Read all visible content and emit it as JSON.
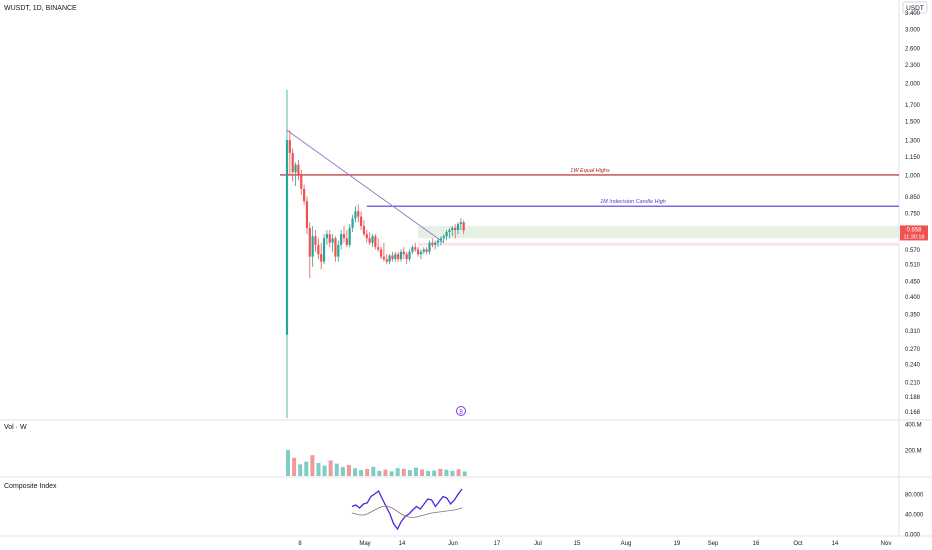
{
  "header": {
    "symbol_line": "WUSDT, 1D, BINANCE",
    "currency_button": "USDT"
  },
  "price_axis": {
    "ticks": [
      "3.400",
      "3.000",
      "2.600",
      "2.300",
      "2.000",
      "1.700",
      "1.500",
      "1.300",
      "1.150",
      "1.000",
      "0.850",
      "0.750",
      "0.570",
      "0.510",
      "0.450",
      "0.400",
      "0.350",
      "0.310",
      "0.270",
      "0.240",
      "0.210",
      "0.188",
      "0.168"
    ],
    "last_price_label": "0.658",
    "countdown_label": "11:30:18",
    "scale": "log"
  },
  "time_axis": {
    "ticks": [
      "8",
      "May",
      "14",
      "Jun",
      "17",
      "Jul",
      "15",
      "Aug",
      "19",
      "Sep",
      "16",
      "Oct",
      "14",
      "Nov"
    ]
  },
  "drawings": {
    "equal_highs_label": "1W Equal Highs",
    "indecision_label": "1M Indecision Candle High",
    "line_color": "#b71c1c",
    "indecision_color": "#4a3fd6"
  },
  "volume_pane": {
    "label": "Vol · W",
    "ticks": [
      "400.M",
      "200.M"
    ]
  },
  "indicator_pane": {
    "label": "Composite Index",
    "ticks": [
      "80.000",
      "40.000",
      "0.000"
    ],
    "line_color": "#4b28d6"
  },
  "colors": {
    "up": "#26a69a",
    "down": "#ef5350",
    "last_price_bg": "#ef5350"
  },
  "chart_data": {
    "type": "candlestick",
    "x": [
      "Apr 3",
      "Apr 4",
      "Apr 5",
      "Apr 6",
      "Apr 7",
      "Apr 8",
      "Apr 9",
      "Apr 10",
      "Apr 11",
      "Apr 12",
      "Apr 13",
      "Apr 14",
      "Apr 15",
      "Apr 16",
      "Apr 17",
      "Apr 18",
      "Apr 19",
      "Apr 20",
      "Apr 21",
      "Apr 22",
      "Apr 23",
      "Apr 24",
      "Apr 25",
      "Apr 26",
      "Apr 27",
      "Apr 28",
      "Apr 29",
      "Apr 30",
      "May 1",
      "May 2",
      "May 3",
      "May 4",
      "May 5",
      "May 6",
      "May 7",
      "May 8",
      "May 9",
      "May 10",
      "May 11",
      "May 12",
      "May 13",
      "May 14",
      "May 15",
      "May 16",
      "May 17",
      "May 18",
      "May 19",
      "May 20",
      "May 21",
      "May 22",
      "May 23",
      "May 24",
      "May 25",
      "May 26",
      "May 27",
      "May 28",
      "May 29",
      "May 30",
      "May 31",
      "Jun 1",
      "Jun 2",
      "Jun 3",
      "Jun 4"
    ],
    "ohlc": [
      [
        0.3,
        1.9,
        0.16,
        1.3
      ],
      [
        1.3,
        1.4,
        1.0,
        1.18
      ],
      [
        1.18,
        1.22,
        0.95,
        1.02
      ],
      [
        1.02,
        1.1,
        0.92,
        1.08
      ],
      [
        1.08,
        1.12,
        0.96,
        1.0
      ],
      [
        1.0,
        1.04,
        0.86,
        0.9
      ],
      [
        0.9,
        0.93,
        0.8,
        0.82
      ],
      [
        0.82,
        0.85,
        0.64,
        0.67
      ],
      [
        0.67,
        0.7,
        0.46,
        0.54
      ],
      [
        0.54,
        0.68,
        0.5,
        0.63
      ],
      [
        0.63,
        0.66,
        0.56,
        0.59
      ],
      [
        0.59,
        0.62,
        0.53,
        0.55
      ],
      [
        0.55,
        0.6,
        0.49,
        0.52
      ],
      [
        0.52,
        0.64,
        0.51,
        0.62
      ],
      [
        0.62,
        0.66,
        0.59,
        0.64
      ],
      [
        0.64,
        0.66,
        0.58,
        0.6
      ],
      [
        0.6,
        0.64,
        0.56,
        0.62
      ],
      [
        0.62,
        0.63,
        0.52,
        0.54
      ],
      [
        0.54,
        0.61,
        0.52,
        0.59
      ],
      [
        0.59,
        0.66,
        0.57,
        0.64
      ],
      [
        0.64,
        0.68,
        0.6,
        0.62
      ],
      [
        0.62,
        0.66,
        0.58,
        0.59
      ],
      [
        0.59,
        0.69,
        0.58,
        0.67
      ],
      [
        0.67,
        0.74,
        0.65,
        0.72
      ],
      [
        0.72,
        0.79,
        0.7,
        0.76
      ],
      [
        0.76,
        0.8,
        0.7,
        0.73
      ],
      [
        0.73,
        0.76,
        0.66,
        0.68
      ],
      [
        0.68,
        0.71,
        0.63,
        0.64
      ],
      [
        0.64,
        0.66,
        0.6,
        0.62
      ],
      [
        0.62,
        0.65,
        0.59,
        0.6
      ],
      [
        0.6,
        0.64,
        0.58,
        0.63
      ],
      [
        0.63,
        0.64,
        0.57,
        0.58
      ],
      [
        0.58,
        0.62,
        0.56,
        0.57
      ],
      [
        0.57,
        0.58,
        0.53,
        0.54
      ],
      [
        0.54,
        0.6,
        0.52,
        0.53
      ],
      [
        0.53,
        0.55,
        0.51,
        0.52
      ],
      [
        0.52,
        0.55,
        0.51,
        0.545
      ],
      [
        0.545,
        0.56,
        0.52,
        0.53
      ],
      [
        0.53,
        0.56,
        0.52,
        0.55
      ],
      [
        0.55,
        0.56,
        0.52,
        0.53
      ],
      [
        0.53,
        0.57,
        0.52,
        0.56
      ],
      [
        0.56,
        0.58,
        0.53,
        0.55
      ],
      [
        0.55,
        0.56,
        0.51,
        0.53
      ],
      [
        0.53,
        0.57,
        0.52,
        0.56
      ],
      [
        0.56,
        0.59,
        0.55,
        0.58
      ],
      [
        0.58,
        0.6,
        0.56,
        0.57
      ],
      [
        0.57,
        0.58,
        0.54,
        0.55
      ],
      [
        0.55,
        0.57,
        0.53,
        0.56
      ],
      [
        0.56,
        0.58,
        0.55,
        0.57
      ],
      [
        0.57,
        0.58,
        0.55,
        0.56
      ],
      [
        0.56,
        0.61,
        0.55,
        0.6
      ],
      [
        0.6,
        0.62,
        0.58,
        0.59
      ],
      [
        0.59,
        0.61,
        0.57,
        0.6
      ],
      [
        0.6,
        0.62,
        0.58,
        0.61
      ],
      [
        0.61,
        0.63,
        0.59,
        0.62
      ],
      [
        0.62,
        0.64,
        0.6,
        0.63
      ],
      [
        0.63,
        0.66,
        0.61,
        0.65
      ],
      [
        0.65,
        0.67,
        0.62,
        0.66
      ],
      [
        0.66,
        0.68,
        0.63,
        0.67
      ],
      [
        0.67,
        0.69,
        0.62,
        0.66
      ],
      [
        0.66,
        0.7,
        0.64,
        0.69
      ],
      [
        0.69,
        0.72,
        0.66,
        0.7
      ],
      [
        0.7,
        0.71,
        0.64,
        0.658
      ]
    ],
    "volume_weekly_M": [
      200,
      140,
      90,
      110,
      160,
      100,
      80,
      120,
      95,
      70,
      85,
      60,
      45,
      55,
      70,
      40,
      50,
      35,
      60,
      55,
      45,
      65,
      50,
      38,
      42,
      55,
      48,
      40,
      52,
      35
    ],
    "composite_index": [
      55,
      58,
      52,
      60,
      62,
      75,
      80,
      86,
      70,
      55,
      40,
      20,
      10,
      25,
      35,
      40,
      48,
      55,
      50,
      60,
      70,
      68,
      55,
      65,
      75,
      72,
      60,
      68,
      80,
      90
    ],
    "composite_index_ma": [
      42,
      40,
      38,
      38,
      40,
      44,
      48,
      52,
      55,
      56,
      54,
      50,
      45,
      40,
      36,
      34,
      33,
      34,
      36,
      38,
      40,
      42,
      43,
      44,
      45,
      46,
      47,
      48,
      50,
      52
    ],
    "levels": [
      {
        "label": "1W Equal Highs",
        "price": 1.0
      },
      {
        "label": "1M Indecision Candle High",
        "price": 0.79
      }
    ],
    "zone": {
      "high": 0.68,
      "low": 0.62
    },
    "trendline": [
      {
        "x": "Apr 3",
        "price": 1.4
      },
      {
        "x": "May 28",
        "price": 0.6
      }
    ],
    "ylim": [
      0.16,
      3.6
    ]
  }
}
